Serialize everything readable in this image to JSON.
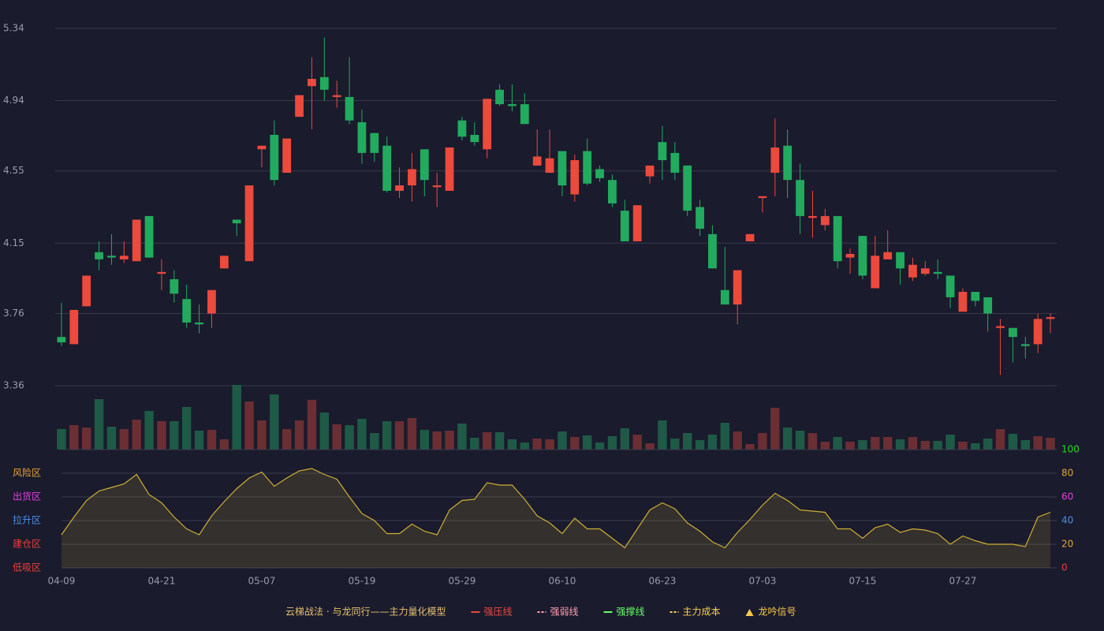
{
  "chart_data": {
    "type": "candlestick",
    "categories": [
      "04-09",
      null,
      null,
      null,
      null,
      null,
      null,
      null,
      "04-21",
      null,
      null,
      null,
      null,
      null,
      null,
      null,
      "05-07",
      null,
      null,
      null,
      null,
      null,
      null,
      null,
      "05-19",
      null,
      null,
      null,
      null,
      null,
      null,
      null,
      "05-29",
      null,
      null,
      null,
      null,
      null,
      null,
      null,
      "06-10",
      null,
      null,
      null,
      null,
      null,
      null,
      null,
      "06-23",
      null,
      null,
      null,
      null,
      null,
      null,
      null,
      "07-03",
      null,
      null,
      null,
      null,
      null,
      null,
      null,
      "07-15",
      null,
      null,
      null,
      null,
      null,
      null,
      null,
      "07-27",
      null,
      null,
      null,
      null,
      null,
      null,
      null
    ],
    "open": [
      3.63,
      3.59,
      3.8,
      4.1,
      4.08,
      4.06,
      4.05,
      4.3,
      3.98,
      3.95,
      3.84,
      3.71,
      3.76,
      4.01,
      4.28,
      4.05,
      4.67,
      4.75,
      4.54,
      4.85,
      5.02,
      5.07,
      4.96,
      4.96,
      4.82,
      4.76,
      4.69,
      4.44,
      4.47,
      4.67,
      4.46,
      4.44,
      4.83,
      4.75,
      4.67,
      5.0,
      4.92,
      4.92,
      4.58,
      4.54,
      4.66,
      4.42,
      4.66,
      4.56,
      4.5,
      4.33,
      4.16,
      4.52,
      4.71,
      4.65,
      4.58,
      4.35,
      4.2,
      3.89,
      3.81,
      4.16,
      4.4,
      4.54,
      4.69,
      4.5,
      4.29,
      4.25,
      4.3,
      4.07,
      4.19,
      3.9,
      4.06,
      4.1,
      3.96,
      3.98,
      3.99,
      3.97,
      3.77,
      3.88,
      3.85,
      3.68,
      3.68,
      3.59,
      3.59,
      3.73
    ],
    "high": [
      3.82,
      3.78,
      3.97,
      4.16,
      4.2,
      4.16,
      4.28,
      4.3,
      4.06,
      4.0,
      3.92,
      3.81,
      3.89,
      4.08,
      4.28,
      4.47,
      4.69,
      4.83,
      4.73,
      4.97,
      5.18,
      5.29,
      5.05,
      5.18,
      4.89,
      4.76,
      4.74,
      4.57,
      4.65,
      4.67,
      4.54,
      4.68,
      4.85,
      4.82,
      4.95,
      5.03,
      5.03,
      4.98,
      4.78,
      4.78,
      4.66,
      4.64,
      4.73,
      4.58,
      4.53,
      4.39,
      4.36,
      4.58,
      4.8,
      4.71,
      4.58,
      4.39,
      4.25,
      4.13,
      4.0,
      4.2,
      4.41,
      4.84,
      4.78,
      4.59,
      4.44,
      4.34,
      4.3,
      4.12,
      4.19,
      4.19,
      4.22,
      4.1,
      4.07,
      4.05,
      4.06,
      3.97,
      3.9,
      3.88,
      3.85,
      3.73,
      3.68,
      3.63,
      3.76,
      3.76
    ],
    "low": [
      3.58,
      3.59,
      3.8,
      4.0,
      4.03,
      4.04,
      4.05,
      4.07,
      3.89,
      3.82,
      3.68,
      3.65,
      3.68,
      4.01,
      4.19,
      4.05,
      4.57,
      4.47,
      4.54,
      4.85,
      4.78,
      4.94,
      4.9,
      4.81,
      4.59,
      4.6,
      4.43,
      4.4,
      4.38,
      4.41,
      4.35,
      4.44,
      4.72,
      4.69,
      4.62,
      4.91,
      4.88,
      4.81,
      4.58,
      4.54,
      4.41,
      4.38,
      4.47,
      4.49,
      4.35,
      4.16,
      4.16,
      4.48,
      4.5,
      4.5,
      4.3,
      4.19,
      4.01,
      3.81,
      3.7,
      4.16,
      4.32,
      4.41,
      4.4,
      4.2,
      4.18,
      4.22,
      4.01,
      3.98,
      3.95,
      3.9,
      4.06,
      3.92,
      3.94,
      3.97,
      3.95,
      3.79,
      3.77,
      3.8,
      3.66,
      3.42,
      3.49,
      3.51,
      3.54,
      3.65
    ],
    "close": [
      3.6,
      3.78,
      3.97,
      4.06,
      4.07,
      4.08,
      4.28,
      4.07,
      3.99,
      3.87,
      3.71,
      3.7,
      3.89,
      4.08,
      4.26,
      4.47,
      4.69,
      4.5,
      4.73,
      4.97,
      5.06,
      5.0,
      4.97,
      4.83,
      4.65,
      4.65,
      4.44,
      4.47,
      4.56,
      4.5,
      4.47,
      4.68,
      4.74,
      4.71,
      4.95,
      4.92,
      4.91,
      4.81,
      4.63,
      4.62,
      4.47,
      4.61,
      4.48,
      4.51,
      4.37,
      4.16,
      4.36,
      4.58,
      4.61,
      4.54,
      4.33,
      4.23,
      4.01,
      3.81,
      4.0,
      4.2,
      4.41,
      4.68,
      4.5,
      4.3,
      4.3,
      4.3,
      4.05,
      4.09,
      3.97,
      4.08,
      4.1,
      4.01,
      4.03,
      4.01,
      3.98,
      3.85,
      3.88,
      3.83,
      3.76,
      3.69,
      3.63,
      3.58,
      3.73,
      3.74
    ],
    "up_color": "#eb4a3d",
    "down_color": "#22ab5e",
    "ylim": [
      3.36,
      5.34
    ],
    "yticks": [
      5.34,
      4.94,
      4.55,
      4.15,
      3.76,
      3.36
    ],
    "grid": true,
    "volume": {
      "values": [
        26,
        31,
        28,
        64,
        29,
        26,
        38,
        49,
        36,
        36,
        54,
        24,
        25,
        13,
        82,
        61,
        37,
        70,
        26,
        37,
        63,
        47,
        32,
        31,
        39,
        21,
        36,
        36,
        40,
        25,
        23,
        24,
        33,
        15,
        22,
        22,
        13,
        9,
        14,
        13,
        23,
        16,
        18,
        9,
        17,
        27,
        19,
        8,
        37,
        14,
        21,
        12,
        19,
        34,
        23,
        7,
        21,
        53,
        28,
        24,
        21,
        10,
        16,
        10,
        12,
        16,
        16,
        13,
        16,
        11,
        11,
        19,
        10,
        8,
        14,
        26,
        20,
        12,
        17,
        15
      ],
      "up_color": "#6a2e33",
      "down_color": "#1e5a46"
    },
    "indicator": {
      "type": "area",
      "values": [
        28,
        43,
        57,
        65,
        68,
        71,
        79,
        62,
        55,
        43,
        33,
        28,
        44,
        56,
        67,
        76,
        81,
        69,
        76,
        82,
        84,
        79,
        75,
        60,
        46,
        40,
        29,
        29,
        37,
        31,
        28,
        49,
        57,
        58,
        72,
        70,
        70,
        58,
        44,
        38,
        29,
        42,
        33,
        33,
        25,
        17,
        33,
        49,
        55,
        50,
        38,
        31,
        22,
        17,
        30,
        41,
        53,
        63,
        57,
        49,
        48,
        47,
        33,
        33,
        25,
        34,
        37,
        30,
        33,
        32,
        29,
        20,
        27,
        23,
        20,
        20,
        20,
        18,
        43,
        47
      ],
      "color": "#cfae35",
      "ylim": [
        0,
        100
      ],
      "yticks": [
        0,
        20,
        40,
        60,
        80,
        100
      ],
      "ytick_colors": [
        "#e8403a",
        "#e8a33a",
        "#4a90e2",
        "#e040e0",
        "#e8a33a",
        "#22dd22"
      ],
      "zones": [
        {
          "label": "风险区",
          "value": 80,
          "color": "#e8a33a"
        },
        {
          "label": "出货区",
          "value": 60,
          "color": "#e040e0"
        },
        {
          "label": "拉升区",
          "value": 40,
          "color": "#4a90e2"
        },
        {
          "label": "建仓区",
          "value": 20,
          "color": "#e8403a"
        },
        {
          "label": "低吸区",
          "value": 0,
          "color": "#e8403a"
        }
      ]
    },
    "legend": {
      "title": "云梯战法 · 与龙同行——主力量化模型",
      "title_color": "#e8c070",
      "items": [
        {
          "name": "强压线",
          "color": "#eb4a3d",
          "style": "solid"
        },
        {
          "name": "强弱线",
          "color": "#ff9fb0",
          "style": "dashed"
        },
        {
          "name": "强撑线",
          "color": "#66ff66",
          "style": "solid"
        },
        {
          "name": "主力成本",
          "color": "#ffd24a",
          "style": "dashed"
        },
        {
          "name": "龙吟信号",
          "color": "#ffc94a",
          "style": "triangle"
        }
      ]
    }
  }
}
